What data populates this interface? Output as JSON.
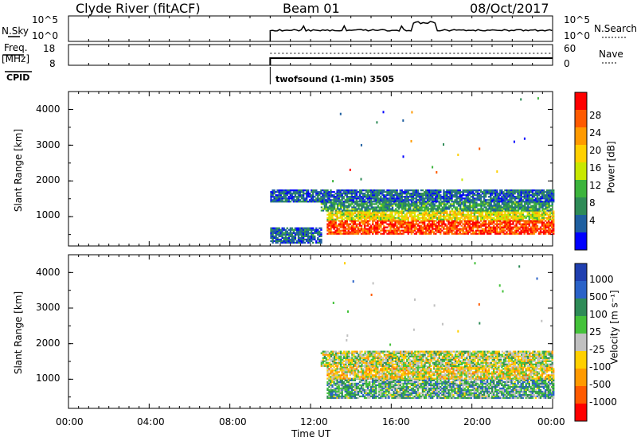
{
  "header": {
    "station": "Clyde River (fitACF)",
    "beam": "Beam 01",
    "date": "08/Oct/2017"
  },
  "noise_panel": {
    "left_label": "N.Sky",
    "left_ticks": [
      "10^5",
      "10^0"
    ],
    "right_ticks": [
      "10^5",
      "10^0"
    ],
    "right_label": "N.Search"
  },
  "freq_panel": {
    "left_label_line1": "Freq.",
    "left_label_line2": "[MHz]",
    "left_ticks": [
      "18",
      "8"
    ],
    "right_ticks": [
      "60",
      "0"
    ],
    "right_label": "Nave"
  },
  "cpid": {
    "label": "CPID",
    "program": "twofsound (1-min) 3505"
  },
  "axes": {
    "ylabel": "Slant Range [km]",
    "yticks": [
      "4000",
      "3000",
      "2000",
      "1000"
    ],
    "xlabel": "Time UT",
    "xticks": [
      "00:00",
      "04:00",
      "08:00",
      "12:00",
      "16:00",
      "20:00",
      "00:00"
    ]
  },
  "power_colorbar": {
    "label": "Power [dB]",
    "ticks": [
      "28",
      "24",
      "20",
      "16",
      "12",
      "8",
      "4"
    ],
    "colors": [
      "#ff0000",
      "#ff5a00",
      "#ff9a00",
      "#ffd000",
      "#c8e800",
      "#3cb43c",
      "#2e8b57",
      "#1e5fa0",
      "#0000ff"
    ]
  },
  "velocity_colorbar": {
    "label": "Velocity [m s⁻¹]",
    "ticks": [
      "1000",
      "500",
      "100",
      "25",
      "-25",
      "-100",
      "-500",
      "-1000"
    ],
    "colors": [
      "#1f3fb0",
      "#2a62c8",
      "#2e8b57",
      "#44c23a",
      "#c0c0c0",
      "#ffd000",
      "#ff9a00",
      "#ff5a00",
      "#ff0000"
    ]
  },
  "chart_data": {
    "type": "heatmap",
    "title": "Clyde River (fitACF)  Beam 01  08/Oct/2017",
    "xlabel": "Time UT",
    "ylabel": "Slant Range [km]",
    "xlim_hours": [
      0,
      24
    ],
    "ylim_km": [
      180,
      4500
    ],
    "data_start_hour": 10.0,
    "panels": [
      {
        "name": "Power [dB]",
        "clim": [
          0,
          32
        ],
        "regions": [
          {
            "t0": 12.8,
            "t1": 24.0,
            "r0": 500,
            "r1": 900,
            "value": 28
          },
          {
            "t0": 12.8,
            "t1": 24.0,
            "r0": 900,
            "r1": 1150,
            "value": 18
          },
          {
            "t0": 12.5,
            "t1": 24.0,
            "r0": 1150,
            "r1": 1400,
            "value": 10
          },
          {
            "t0": 10.0,
            "t1": 24.0,
            "r0": 1400,
            "r1": 1750,
            "value": 6
          },
          {
            "t0": 10.0,
            "t1": 12.5,
            "r0": 250,
            "r1": 700,
            "value": 6
          }
        ]
      },
      {
        "name": "Velocity [m/s]",
        "clim": [
          -1000,
          1000
        ],
        "regions": [
          {
            "t0": 12.8,
            "t1": 24.0,
            "r0": 450,
            "r1": 1000,
            "value": 300
          },
          {
            "t0": 12.8,
            "t1": 24.0,
            "r0": 1000,
            "r1": 1350,
            "value": -150
          },
          {
            "t0": 12.5,
            "t1": 24.0,
            "r0": 1350,
            "r1": 1800,
            "value": 0
          }
        ]
      }
    ]
  }
}
